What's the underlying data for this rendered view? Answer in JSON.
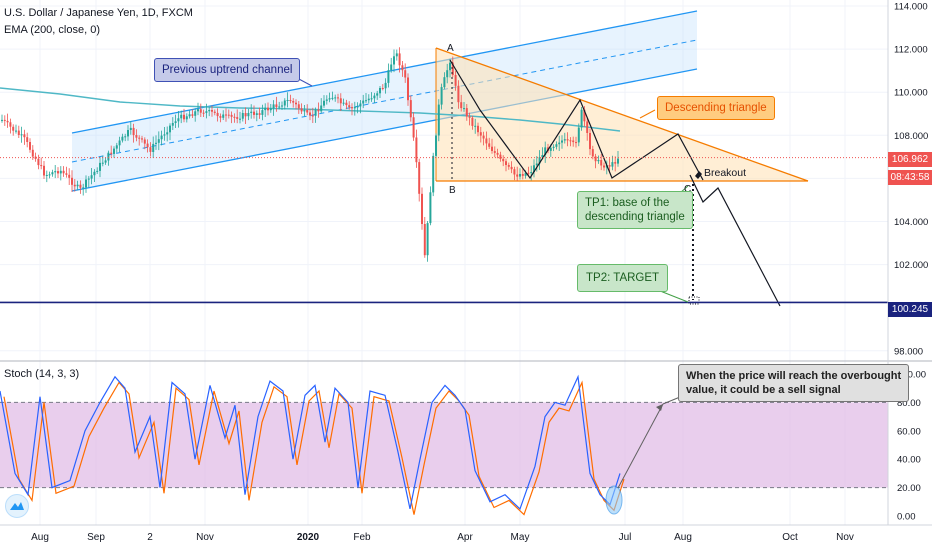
{
  "header": {
    "symbol_line": "U.S. Dollar / Japanese Yen, 1D, FXCM",
    "ema_line": "EMA (200, close, 0)",
    "stoch_line": "Stoch (14, 3, 3)"
  },
  "annotations": {
    "channel_label": "Previous uptrend channel",
    "triangle_label": "Descending triangle",
    "breakout_label": "Breakout",
    "tp1_line1": "TP1: base of the",
    "tp1_line2": "descending triangle",
    "tp2_label": "TP2: TARGET",
    "stoch_note_line1": "When the price will reach the overbought",
    "stoch_note_line2": "value, it could be a sell signal",
    "point_a": "A",
    "point_b": "B",
    "point_c": "C"
  },
  "price_tags": {
    "current_price": "106.962",
    "countdown": "08:43:58",
    "target_price": "100.245"
  },
  "colors": {
    "channel": "#2196f3",
    "triangle": "#f57c00",
    "triangle_fill": "#ffe0b2",
    "ema": "#4fb8c6",
    "candle_up": "#26a69a",
    "candle_down": "#ef5350",
    "stoch_k": "#2962ff",
    "stoch_d": "#ff6d00",
    "stoch_band": "#e1bee7",
    "target_line": "#1a237e",
    "current_tag": "#ef5350"
  },
  "chart_data": [
    {
      "type": "candlestick",
      "price_ticks": [
        "114.000",
        "112.000",
        "110.000",
        "108.000",
        "106.000",
        "104.000",
        "102.000",
        "98.000"
      ],
      "ylim": [
        97.6,
        114.3
      ],
      "time_ticks": [
        "Aug",
        "Sep",
        "2",
        "Nov",
        "2020",
        "Feb",
        "Apr",
        "May",
        "Jul",
        "Aug",
        "Oct",
        "Nov"
      ],
      "ema_period": 200,
      "levels": {
        "current": 106.962,
        "target": 100.245
      },
      "pattern_points": {
        "A": 111.6,
        "B": 106.0,
        "C": 106.1
      }
    },
    {
      "type": "line",
      "name": "Stoch (14, 3, 3)",
      "y_ticks": [
        "100.00",
        "80.00",
        "60.00",
        "40.00",
        "20.00",
        "0.00"
      ],
      "ylim": [
        -3,
        103
      ],
      "bands": [
        20,
        80
      ]
    }
  ]
}
